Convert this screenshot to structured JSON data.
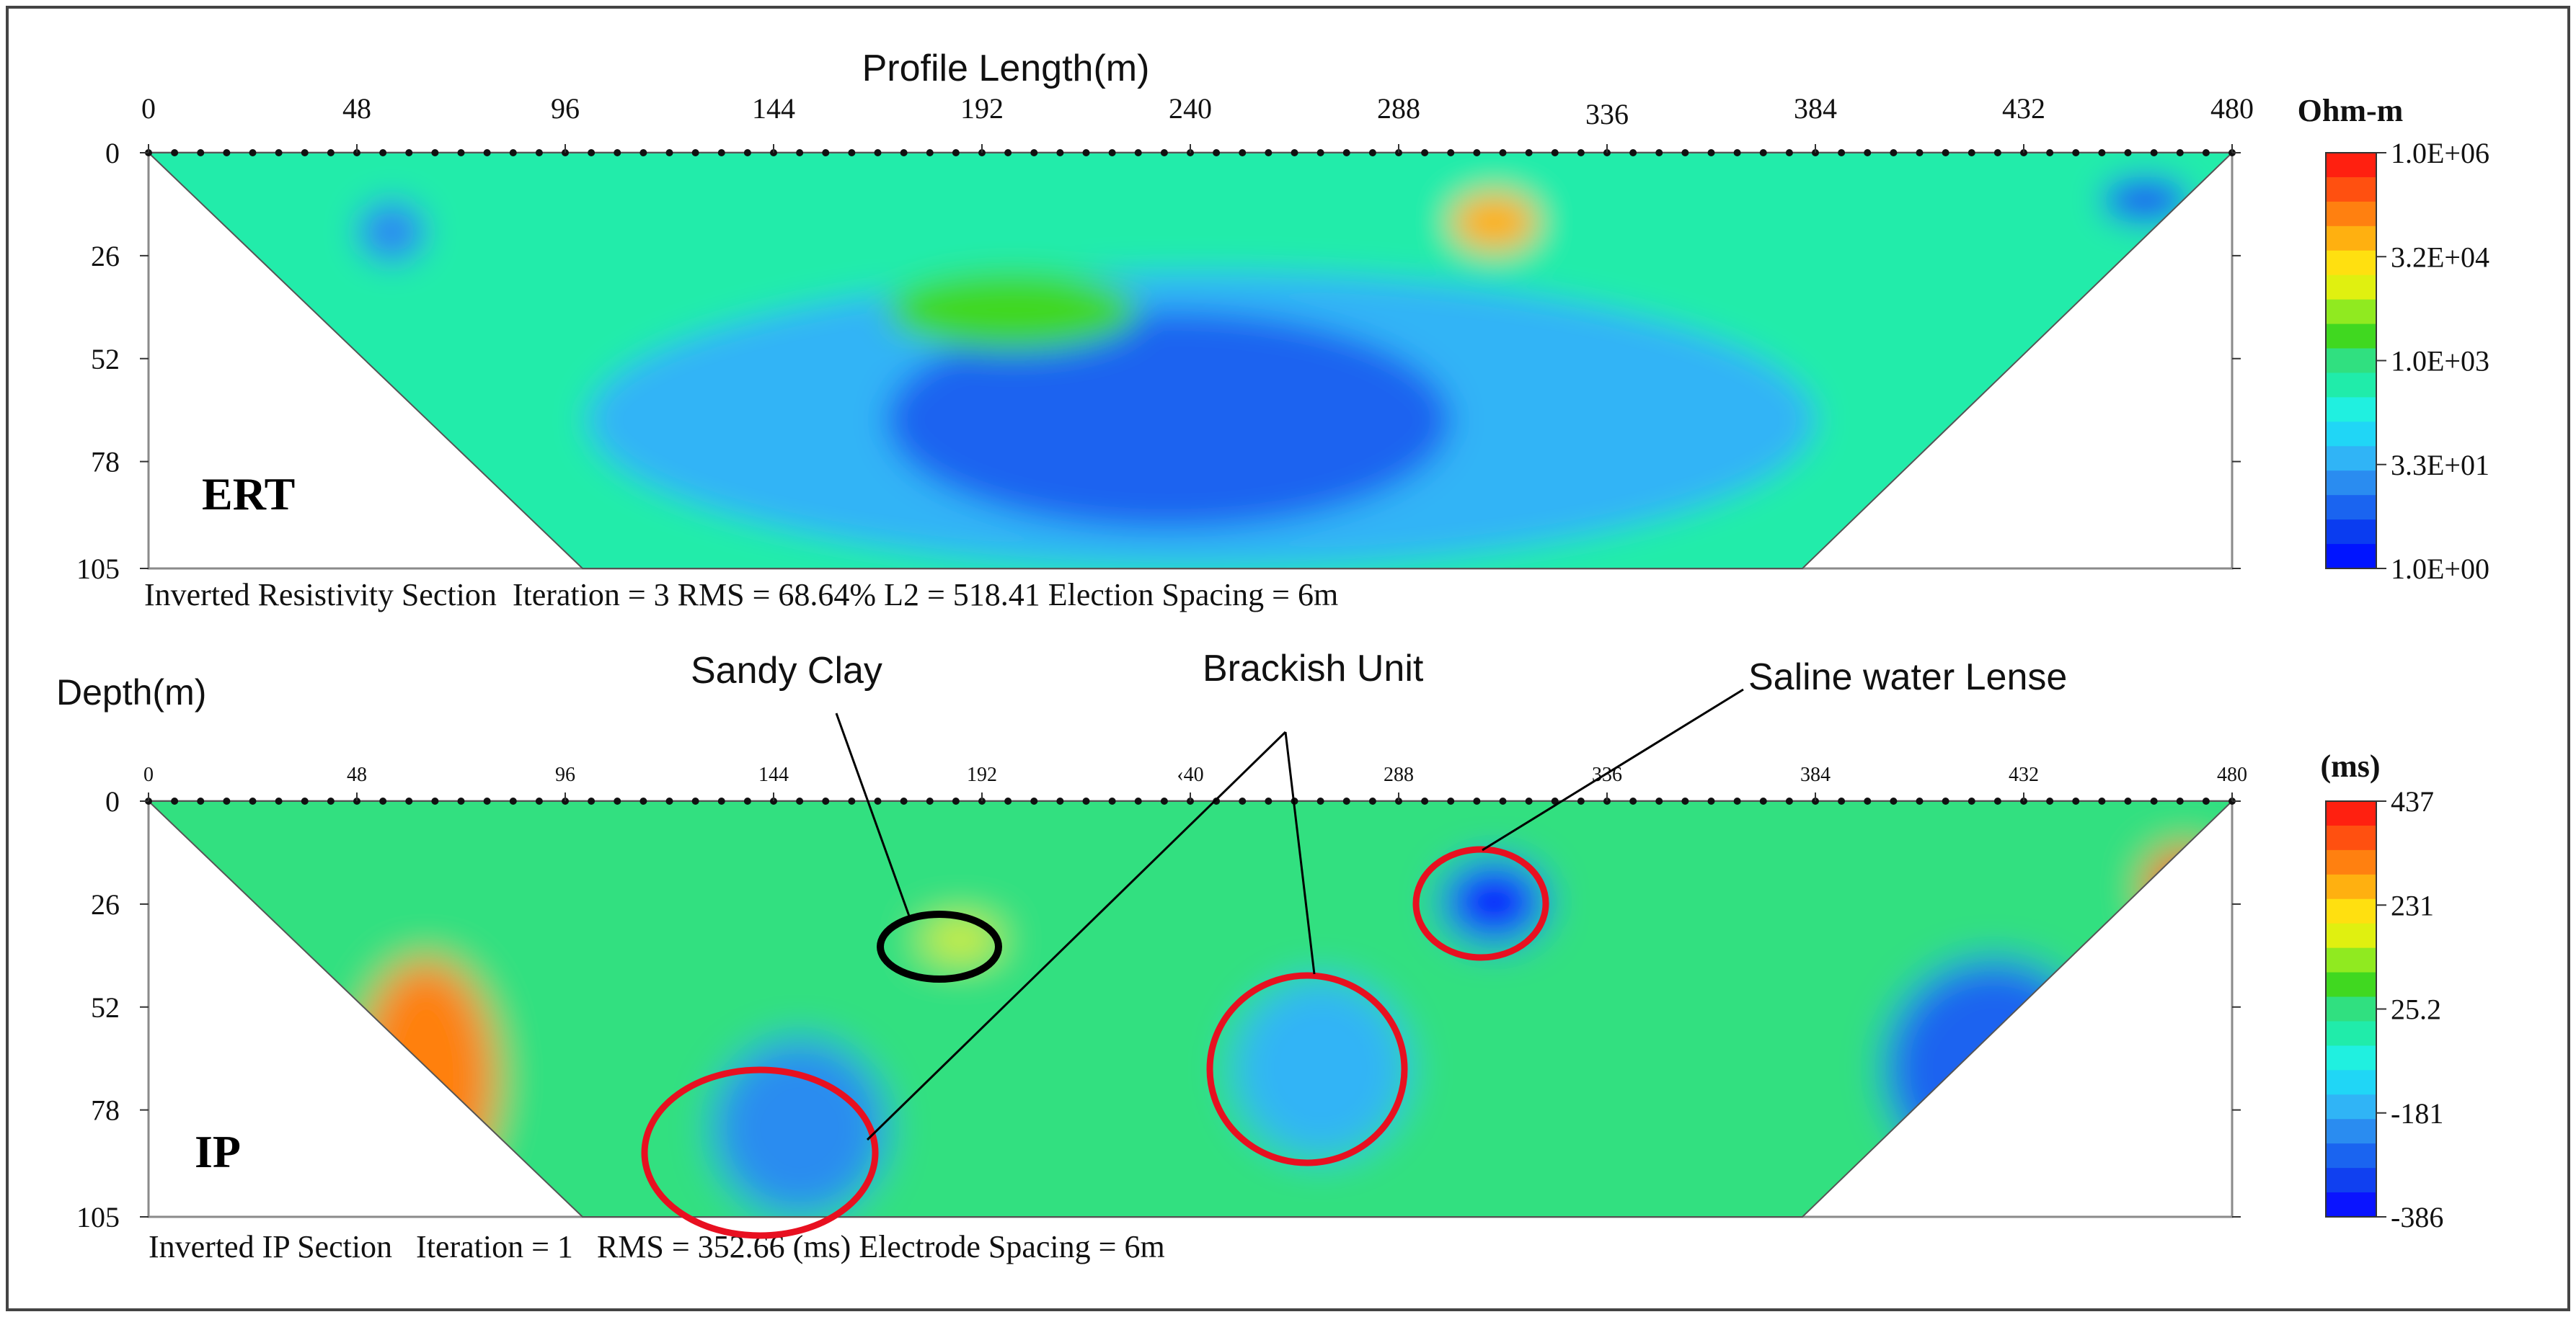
{
  "ert": {
    "tag": "ERT",
    "xlabel": "Profile Length(m)",
    "x_ticks": [
      "0",
      "48",
      "96",
      "144",
      "192",
      "240",
      "288",
      "336",
      "384",
      "432",
      "480"
    ],
    "y_ticks": [
      "0",
      "26",
      "52",
      "78",
      "105"
    ],
    "caption": "Inverted Resistivity Section  Iteration = 3 RMS = 68.64% L2 = 518.41 Election Spacing = 6m",
    "colorbar": {
      "title": "Ohm-m",
      "labels": [
        "1.0E+06",
        "3.2E+04",
        "1.0E+03",
        "3.3E+01",
        "1.0E+00"
      ]
    }
  },
  "ip": {
    "tag": "IP",
    "ylabel": "Depth(m)",
    "x_ticks": [
      "0",
      "48",
      "96",
      "144",
      "192",
      "240",
      "288",
      "336",
      "384",
      "432",
      "480"
    ],
    "x_ticks_shown": [
      "0",
      "48",
      "96",
      "144",
      "192",
      "‹40",
      "288",
      "336",
      "384",
      "432",
      "480"
    ],
    "y_ticks": [
      "0",
      "26",
      "52",
      "78",
      "105"
    ],
    "caption": "Inverted IP Section   Iteration = 1   RMS = 352.66 (ms) Electrode Spacing = 6m",
    "colorbar": {
      "title": "(ms)",
      "labels": [
        "437",
        "231",
        "25.2",
        "-181",
        "-386"
      ]
    },
    "annotations": [
      "Sandy Clay",
      "Brackish Unit",
      "Saline water Lense"
    ]
  },
  "colors": {
    "ert_scale": [
      "#0014ff",
      "#0a3cf0",
      "#1a64f0",
      "#2a8cf0",
      "#30b4f6",
      "#20d6f6",
      "#20f0e0",
      "#20ecaa",
      "#30e080",
      "#40d820",
      "#90ea20",
      "#e0f010",
      "#ffe010",
      "#ffb010",
      "#ff8010",
      "#ff5010",
      "#ff2010"
    ],
    "ip_scale": [
      "#0a14ff",
      "#1040f0",
      "#1a64f0",
      "#2a8cf0",
      "#30b4f6",
      "#20d6f6",
      "#20f0e0",
      "#20ecaa",
      "#30e080",
      "#40d820",
      "#90ea20",
      "#e0f010",
      "#ffe010",
      "#ffb010",
      "#ff8010",
      "#ff5010",
      "#ff2010"
    ],
    "circle": "#e81020",
    "sandy_outline": "#000000",
    "frame": "#333333"
  },
  "chart_data": [
    {
      "type": "heatmap",
      "title": "",
      "tag": "ERT",
      "xlabel": "Profile Length(m)",
      "ylabel": "Depth(m)",
      "xlim": [
        0,
        480
      ],
      "ylim": [
        105,
        0
      ],
      "x_ticks": [
        0,
        48,
        96,
        144,
        192,
        240,
        288,
        336,
        384,
        432,
        480
      ],
      "y_ticks": [
        0,
        26,
        52,
        78,
        105
      ],
      "color_scale": "log10 resistivity, 1.0E+00 to 1.0E+06 Ohm-m",
      "pseudosection_outline": [
        [
          0,
          0
        ],
        [
          480,
          0
        ],
        [
          384,
          105
        ],
        [
          101,
          105
        ]
      ],
      "regions": [
        {
          "x": [
            0,
            480
          ],
          "y": [
            0,
            105
          ],
          "log10_rho": 2.5
        },
        {
          "x": [
            101,
            384
          ],
          "y": [
            30,
            105
          ],
          "log10_rho": 1.5
        },
        {
          "x": [
            170,
            300
          ],
          "y": [
            40,
            95
          ],
          "log10_rho": 0.9
        },
        {
          "x": [
            48,
            64
          ],
          "y": [
            12,
            28
          ],
          "log10_rho": 1.1
        },
        {
          "x": [
            170,
            228
          ],
          "y": [
            30,
            50
          ],
          "log10_rho": 3.5
        },
        {
          "x": [
            300,
            320
          ],
          "y": [
            10,
            25
          ],
          "log10_rho": 4.8
        },
        {
          "x": [
            450,
            470
          ],
          "y": [
            6,
            18
          ],
          "log10_rho": 0.6
        }
      ]
    },
    {
      "type": "heatmap",
      "title": "",
      "tag": "IP",
      "xlabel": "Profile Length(m)",
      "ylabel": "Depth(m)",
      "xlim": [
        0,
        480
      ],
      "ylim": [
        105,
        0
      ],
      "x_ticks": [
        0,
        48,
        96,
        144,
        192,
        240,
        288,
        336,
        384,
        432,
        480
      ],
      "y_ticks": [
        0,
        26,
        52,
        78,
        105
      ],
      "color_scale": "chargeability, -386 to 437 ms",
      "pseudosection_outline": [
        [
          0,
          0
        ],
        [
          480,
          0
        ],
        [
          384,
          105
        ],
        [
          101,
          105
        ]
      ],
      "regions": [
        {
          "x": [
            0,
            480
          ],
          "y": [
            0,
            105
          ],
          "ms": 25
        },
        {
          "x": [
            48,
            80
          ],
          "y": [
            40,
            100
          ],
          "ms": 330
        },
        {
          "x": [
            130,
            170
          ],
          "y": [
            60,
            105
          ],
          "ms": -230
        },
        {
          "x": [
            250,
            290
          ],
          "y": [
            45,
            90
          ],
          "ms": -160
        },
        {
          "x": [
            298,
            322
          ],
          "y": [
            15,
            36
          ],
          "ms": -386
        },
        {
          "x": [
            400,
            450
          ],
          "y": [
            40,
            95
          ],
          "ms": -300
        },
        {
          "x": [
            178,
            196
          ],
          "y": [
            30,
            40
          ],
          "ms": 180
        },
        {
          "x": [
            460,
            478
          ],
          "y": [
            12,
            32
          ],
          "ms": 380
        }
      ],
      "annotations": [
        {
          "text": "Sandy Clay",
          "x": 183,
          "y": 35
        },
        {
          "text": "Brackish Unit",
          "x": 150,
          "y": 82
        },
        {
          "text": "Brackish Unit",
          "x": 268,
          "y": 66
        },
        {
          "text": "Saline water Lense",
          "x": 308,
          "y": 25
        }
      ]
    }
  ]
}
